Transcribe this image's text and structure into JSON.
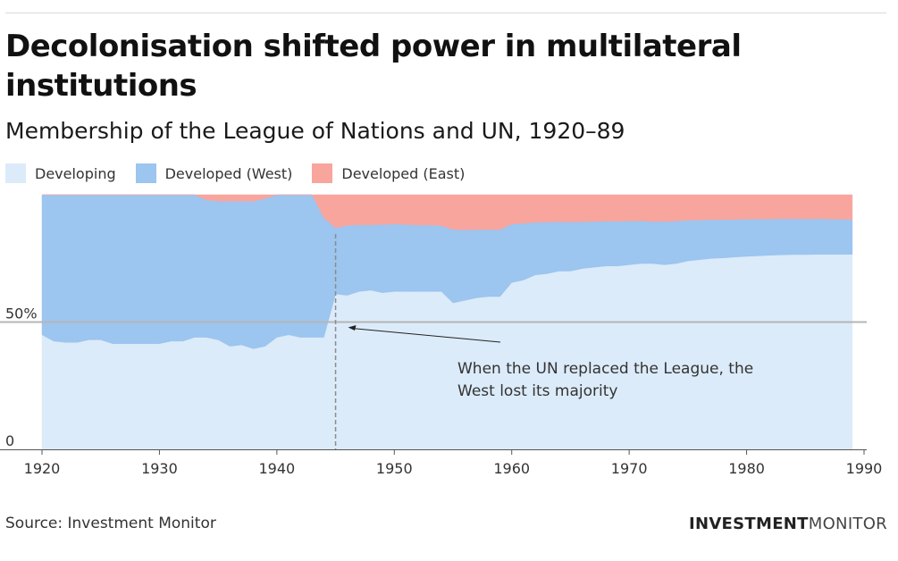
{
  "header": {
    "title": "Decolonisation shifted power in multilateral institutions",
    "subtitle": "Membership of the League of Nations and UN, 1920–89"
  },
  "legend": {
    "items": [
      {
        "label": "Developing",
        "color": "#dcebf9"
      },
      {
        "label": "Developed (West)",
        "color": "#9cc5ef"
      },
      {
        "label": "Developed (East)",
        "color": "#f8a59d"
      }
    ]
  },
  "footer": {
    "source": "Source: Investment Monitor",
    "brand_bold": "INVESTMENT",
    "brand_light": "MONITOR"
  },
  "chart_data": {
    "type": "area",
    "stacked": true,
    "normalized_to": 100,
    "x": [
      1920,
      1921,
      1922,
      1923,
      1924,
      1925,
      1926,
      1927,
      1928,
      1929,
      1930,
      1931,
      1932,
      1933,
      1934,
      1935,
      1936,
      1937,
      1938,
      1939,
      1940,
      1941,
      1942,
      1943,
      1944,
      1945,
      1946,
      1947,
      1948,
      1949,
      1950,
      1951,
      1952,
      1953,
      1954,
      1955,
      1956,
      1957,
      1958,
      1959,
      1960,
      1961,
      1962,
      1963,
      1964,
      1965,
      1966,
      1967,
      1968,
      1969,
      1970,
      1971,
      1972,
      1973,
      1974,
      1975,
      1976,
      1977,
      1978,
      1979,
      1980,
      1981,
      1982,
      1983,
      1984,
      1985,
      1986,
      1987,
      1988,
      1989
    ],
    "series": [
      {
        "name": "Developing",
        "color": "#dcebf9",
        "values": [
          45,
          42.5,
          42,
          42,
          43,
          43,
          41.5,
          41.5,
          41.5,
          41.5,
          41.5,
          42.5,
          42.5,
          44,
          44,
          43,
          40.5,
          41,
          39.5,
          40.5,
          44,
          45,
          44,
          44,
          44,
          61,
          60.5,
          62,
          62.5,
          61.5,
          62,
          62,
          62,
          62,
          62,
          57.5,
          58.5,
          59.5,
          60,
          60,
          65.5,
          66.5,
          68.5,
          69,
          70,
          70,
          71,
          71.5,
          72,
          72,
          72.5,
          73,
          73,
          72.5,
          73,
          74,
          74.5,
          75,
          75.2,
          75.5,
          75.8,
          76,
          76.2,
          76.4,
          76.5,
          76.5,
          76.6,
          76.6,
          76.6,
          76.6
        ]
      },
      {
        "name": "Developed (West)",
        "color": "#9cc5ef",
        "values": [
          55,
          57.5,
          58,
          58,
          57,
          57,
          58.5,
          58.5,
          58.5,
          58.5,
          58.5,
          57.5,
          57.5,
          56,
          54,
          54.5,
          57,
          56.5,
          58,
          58,
          56,
          55,
          56,
          56,
          47,
          26,
          27.5,
          26.2,
          25.7,
          26.8,
          26.5,
          26.3,
          26.1,
          26.1,
          25.9,
          28.9,
          27.7,
          26.8,
          26.3,
          26.3,
          23,
          22.3,
          20.7,
          20.3,
          19.4,
          19.3,
          18.4,
          18,
          17.6,
          17.6,
          17.2,
          16.8,
          16.5,
          17,
          16.7,
          16,
          15.6,
          15.2,
          15,
          14.8,
          14.6,
          14.5,
          14.3,
          14.2,
          14.1,
          14,
          14,
          13.9,
          13.8,
          13.7
        ]
      },
      {
        "name": "Developed (East)",
        "color": "#f8a59d",
        "values": [
          0,
          0,
          0,
          0,
          0,
          0,
          0,
          0,
          0,
          0,
          0,
          0,
          0,
          0,
          2,
          2.5,
          2.5,
          2.5,
          2.5,
          1.5,
          0,
          0,
          0,
          0,
          9,
          13,
          12,
          11.8,
          11.8,
          11.7,
          11.5,
          11.7,
          11.9,
          11.9,
          12.1,
          13.6,
          13.8,
          13.7,
          13.7,
          13.7,
          11.5,
          11.2,
          10.8,
          10.7,
          10.6,
          10.7,
          10.6,
          10.5,
          10.4,
          10.4,
          10.3,
          10.2,
          10.5,
          10.5,
          10.3,
          10,
          9.9,
          9.8,
          9.8,
          9.7,
          9.6,
          9.5,
          9.5,
          9.4,
          9.4,
          9.5,
          9.4,
          9.5,
          9.6,
          9.7
        ]
      }
    ],
    "xlim": [
      1920,
      1990
    ],
    "ylim": [
      0,
      100
    ],
    "x_ticks": [
      1920,
      1930,
      1940,
      1950,
      1960,
      1970,
      1980,
      1990
    ],
    "y_ticks": [
      {
        "value": 0,
        "label": "0"
      },
      {
        "value": 50,
        "label": "50%"
      }
    ],
    "reference_line": {
      "value": 50
    },
    "event_line": {
      "x": 1945
    },
    "annotation": {
      "lines": [
        "When the UN replaced the League, the",
        "West lost its majority"
      ],
      "target": {
        "x": 1945,
        "y": 50
      }
    },
    "grid": false,
    "legend_position": "top-left"
  }
}
